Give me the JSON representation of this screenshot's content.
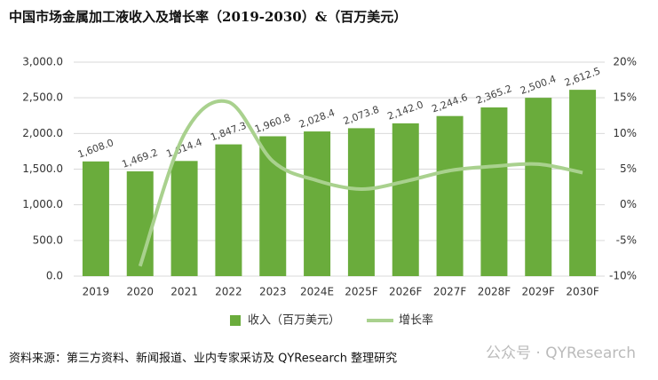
{
  "chart_data": {
    "type": "combo",
    "title": "中国市场金属加工液收入及增长率（2019-2030）&（百万美元）",
    "categories": [
      "2019",
      "2020",
      "2021",
      "2022",
      "2023",
      "2024E",
      "2025F",
      "2026F",
      "2027F",
      "2028F",
      "2029F",
      "2030F"
    ],
    "series": [
      {
        "name": "收入（百万美元）",
        "type": "bar",
        "color": "#6aac3c",
        "values": [
          1608.0,
          1469.2,
          1614.4,
          1847.3,
          1960.8,
          2028.4,
          2073.8,
          2142.0,
          2244.6,
          2365.2,
          2500.4,
          2612.5
        ],
        "value_labels": [
          "1,608.0",
          "1,469.2",
          "1,614.4",
          "1,847.3",
          "1,960.8",
          "2,028.4",
          "2,073.8",
          "2,142.0",
          "2,244.6",
          "2,365.2",
          "2,500.4",
          "2,612.5"
        ]
      },
      {
        "name": "增长率",
        "type": "line",
        "axis": "y2",
        "color": "#a9d18e",
        "values": [
          null,
          -8.6,
          9.9,
          14.4,
          6.1,
          3.4,
          2.2,
          3.3,
          4.8,
          5.4,
          5.7,
          4.5
        ]
      }
    ],
    "ylim": [
      0,
      3000
    ],
    "yticks": [
      {
        "value": 0,
        "label": "0.0"
      },
      {
        "value": 500,
        "label": "500.0"
      },
      {
        "value": 1000,
        "label": "1,000.0"
      },
      {
        "value": 1500,
        "label": "1,500.0"
      },
      {
        "value": 2000,
        "label": "2,000.0"
      },
      {
        "value": 2500,
        "label": "2,500.0"
      },
      {
        "value": 3000,
        "label": "3,000.0"
      }
    ],
    "y2lim": [
      -10,
      20
    ],
    "y2ticks": [
      {
        "value": -10,
        "label": "-10%"
      },
      {
        "value": -5,
        "label": "-5%"
      },
      {
        "value": 0,
        "label": "0%"
      },
      {
        "value": 5,
        "label": "5%"
      },
      {
        "value": 10,
        "label": "10%"
      },
      {
        "value": 15,
        "label": "15%"
      },
      {
        "value": 20,
        "label": "20%"
      }
    ],
    "grid": true,
    "legend": "bottom",
    "source": "资料来源：第三方资料、新闻报道、业内专家采访及 QYResearch 整理研究",
    "watermark": "公众号 · QYResearch"
  }
}
